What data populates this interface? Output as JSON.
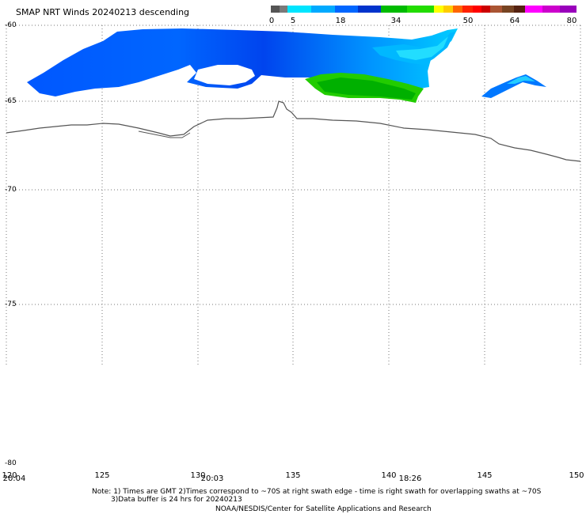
{
  "title": "SMAP NRT Winds  20240213 descending",
  "colorbar": {
    "labels": [
      "0",
      "5",
      "18",
      "34",
      "50",
      "64",
      "80"
    ],
    "colors": [
      "#555555",
      "#7a7a7a",
      "#00e5ff",
      "#00aaff",
      "#0066ff",
      "#0033cc",
      "#00bb00",
      "#22dd00",
      "#ffff00",
      "#ffcc00",
      "#ff6600",
      "#ff2200",
      "#ff0000",
      "#cc0000",
      "#aa5533",
      "#774422",
      "#552211",
      "#ff00ff",
      "#cc00cc",
      "#9900bb"
    ]
  },
  "map": {
    "lat_labels": [
      "-60",
      "-65",
      "-70",
      "-75",
      "-80"
    ],
    "lon_labels": [
      "120",
      "125",
      "130",
      "135",
      "140",
      "145",
      "150"
    ],
    "times": [
      "20:04",
      "20:03",
      "18:26"
    ]
  },
  "notes": {
    "line1": "Note: 1) Times are GMT 2)Times correspond to ~70S at right swath edge - time is right swath for overlapping swaths at ~70S",
    "line2": "3)Data buffer is 24 hrs for 20240213",
    "line3": "NOAA/NESDIS/Center for Satellite Applications and Research"
  }
}
